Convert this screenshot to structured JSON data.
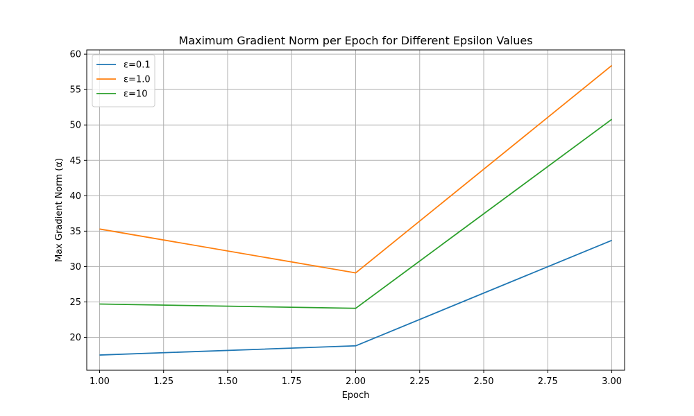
{
  "chart_data": {
    "type": "line",
    "title": "Maximum Gradient Norm per Epoch for Different Epsilon Values",
    "xlabel": "Epoch",
    "ylabel": "Max Gradient Norm (α)",
    "x": [
      1.0,
      2.0,
      3.0
    ],
    "xlim": [
      0.95,
      3.05
    ],
    "ylim": [
      15.35,
      60.6
    ],
    "xticks": [
      1.0,
      1.25,
      1.5,
      1.75,
      2.0,
      2.25,
      2.5,
      2.75,
      3.0
    ],
    "xtick_labels": [
      "1.00",
      "1.25",
      "1.50",
      "1.75",
      "2.00",
      "2.25",
      "2.50",
      "2.75",
      "3.00"
    ],
    "yticks": [
      20,
      25,
      30,
      35,
      40,
      45,
      50,
      55,
      60
    ],
    "ytick_labels": [
      "20",
      "25",
      "30",
      "35",
      "40",
      "45",
      "50",
      "55",
      "60"
    ],
    "grid": true,
    "legend_position": "top-left",
    "series": [
      {
        "name": "ε=0.1",
        "color": "#1f77b4",
        "values": [
          17.5,
          18.8,
          33.7
        ]
      },
      {
        "name": "ε=1.0",
        "color": "#ff7f0e",
        "values": [
          35.3,
          29.1,
          58.4
        ]
      },
      {
        "name": "ε=10",
        "color": "#2ca02c",
        "values": [
          24.7,
          24.1,
          50.8
        ]
      }
    ]
  }
}
